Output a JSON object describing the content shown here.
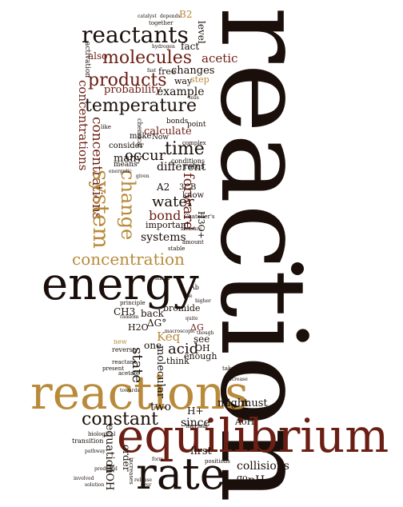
{
  "palette": {
    "dark": "#1a0f0a",
    "maroon": "#6b1e14",
    "brown": "#7a4a22",
    "tan": "#b88a3a",
    "gray": "#8a7a6a"
  },
  "words": [
    {
      "key": "reaction",
      "text": "reaction"
    },
    {
      "key": "energy",
      "text": "energy"
    },
    {
      "key": "equilibrium",
      "text": "equilibrium"
    },
    {
      "key": "reactions",
      "text": "reactions"
    },
    {
      "key": "rate",
      "text": "rate"
    },
    {
      "key": "reactants",
      "text": "reactants"
    },
    {
      "key": "molecules",
      "text": "molecules"
    },
    {
      "key": "products",
      "text": "products"
    },
    {
      "key": "temperature",
      "text": "temperature"
    },
    {
      "key": "concentrations_h",
      "text": "concentrations"
    },
    {
      "key": "concentrations_v",
      "text": "concentrations"
    },
    {
      "key": "concentration",
      "text": "concentration"
    },
    {
      "key": "system",
      "text": "system"
    },
    {
      "key": "change",
      "text": "change"
    },
    {
      "key": "time",
      "text": "time"
    },
    {
      "key": "occur",
      "text": "occur"
    },
    {
      "key": "constant",
      "text": "constant"
    },
    {
      "key": "water",
      "text": "water"
    },
    {
      "key": "bond",
      "text": "bond"
    },
    {
      "key": "systems",
      "text": "systems"
    },
    {
      "key": "probability",
      "text": "probability"
    },
    {
      "key": "example",
      "text": "example"
    },
    {
      "key": "different",
      "text": "different"
    },
    {
      "key": "many",
      "text": "many"
    },
    {
      "key": "acetic",
      "text": "acetic"
    },
    {
      "key": "changes",
      "text": "changes"
    },
    {
      "key": "forward",
      "text": "forward"
    },
    {
      "key": "calculate",
      "text": "calculate"
    },
    {
      "key": "state",
      "text": "state"
    },
    {
      "key": "acid",
      "text": "acid"
    },
    {
      "key": "keq",
      "text": "Keq"
    },
    {
      "key": "molecular",
      "text": "molecular"
    },
    {
      "key": "equation",
      "text": "equation"
    },
    {
      "key": "two",
      "text": "two"
    },
    {
      "key": "since",
      "text": "since"
    },
    {
      "key": "collisions",
      "text": "collisions"
    },
    {
      "key": "ph",
      "text": "pH"
    },
    {
      "key": "first",
      "text": "first"
    },
    {
      "key": "might",
      "text": "might"
    },
    {
      "key": "must",
      "text": "must"
    },
    {
      "key": "order",
      "text": "order"
    },
    {
      "key": "hoh",
      "text": "HOH"
    },
    {
      "key": "go",
      "text": "go"
    },
    {
      "key": "aoh",
      "text": "AoH"
    },
    {
      "key": "h_plus",
      "text": "H+"
    },
    {
      "key": "ch3",
      "text": "CH3"
    },
    {
      "key": "bromide",
      "text": "bromide"
    },
    {
      "key": "back",
      "text": "back"
    },
    {
      "key": "h2o",
      "text": "H2O"
    },
    {
      "key": "dg0",
      "text": "ΔG°"
    },
    {
      "key": "dg",
      "text": "ΔG"
    },
    {
      "key": "see",
      "text": "see"
    },
    {
      "key": "oh",
      "text": "OH"
    },
    {
      "key": "enough",
      "text": "enough"
    },
    {
      "key": "think",
      "text": "think"
    },
    {
      "key": "one",
      "text": "one"
    },
    {
      "key": "important",
      "text": "important"
    },
    {
      "key": "know",
      "text": "know"
    },
    {
      "key": "a2",
      "text": "A2"
    },
    {
      "key": "h3o",
      "text": "H3O+"
    },
    {
      "key": "rates",
      "text": "rates"
    },
    {
      "key": "level",
      "text": "level"
    },
    {
      "key": "fact",
      "text": "fact"
    },
    {
      "key": "also",
      "text": "also"
    },
    {
      "key": "free",
      "text": "free"
    },
    {
      "key": "way",
      "text": "way"
    },
    {
      "key": "step",
      "text": "step"
    },
    {
      "key": "b2",
      "text": "B2"
    },
    {
      "key": "activation",
      "text": "activation"
    },
    {
      "key": "means",
      "text": "means"
    },
    {
      "key": "consider",
      "text": "consider"
    },
    {
      "key": "make",
      "text": "make"
    },
    {
      "key": "now",
      "text": "Now"
    },
    {
      "key": "bonds",
      "text": "bonds"
    },
    {
      "key": "point",
      "text": "point"
    },
    {
      "key": "complex",
      "text": "complex"
    },
    {
      "key": "conditions",
      "text": "conditions"
    },
    {
      "key": "threeb",
      "text": "3CB"
    },
    {
      "key": "chatelier",
      "text": "Chatelier's"
    },
    {
      "key": "amount",
      "text": "amount"
    },
    {
      "key": "stable",
      "text": "stable"
    },
    {
      "key": "principle",
      "text": "principle"
    },
    {
      "key": "biological",
      "text": "biological"
    },
    {
      "key": "transition",
      "text": "transition"
    },
    {
      "key": "reverse",
      "text": "reverse"
    },
    {
      "key": "acetate",
      "text": "acetate"
    },
    {
      "key": "new",
      "text": "new"
    },
    {
      "key": "reactant",
      "text": "reactant"
    },
    {
      "key": "present",
      "text": "present"
    },
    {
      "key": "take",
      "text": "take"
    },
    {
      "key": "increases",
      "text": "increases"
    },
    {
      "key": "positions",
      "text": "positions"
    },
    {
      "key": "thermal",
      "text": "thermal"
    },
    {
      "key": "together",
      "text": "together"
    },
    {
      "key": "catalyst",
      "text": "catalyst"
    },
    {
      "key": "depends",
      "text": "depends"
    },
    {
      "key": "hydrogen",
      "text": "hydrogen"
    },
    {
      "key": "fast",
      "text": "fast"
    },
    {
      "key": "tells",
      "text": "tells"
    },
    {
      "key": "like",
      "text": "like"
    },
    {
      "key": "chemical",
      "text": "chemical"
    },
    {
      "key": "solution",
      "text": "solution"
    },
    {
      "key": "involved",
      "text": "involved"
    },
    {
      "key": "ever",
      "text": "ever"
    },
    {
      "key": "form",
      "text": "form"
    },
    {
      "key": "towards",
      "text": "towards"
    },
    {
      "key": "macroscopic",
      "text": "macroscopic"
    },
    {
      "key": "random",
      "text": "random"
    },
    {
      "key": "higher",
      "text": "higher"
    },
    {
      "key": "produced",
      "text": "produced"
    },
    {
      "key": "pathway",
      "text": "pathway"
    },
    {
      "key": "ab",
      "text": "Ab"
    },
    {
      "key": "increase",
      "text": "increase"
    },
    {
      "key": "mixed",
      "text": "mixed"
    },
    {
      "key": "use",
      "text": "use"
    },
    {
      "key": "given",
      "text": "given"
    },
    {
      "key": "quite",
      "text": "quite"
    },
    {
      "key": "release",
      "text": "release"
    },
    {
      "key": "measure",
      "text": "measure"
    },
    {
      "key": "though",
      "text": "though"
    },
    {
      "key": "energetic",
      "text": "energetic"
    }
  ]
}
